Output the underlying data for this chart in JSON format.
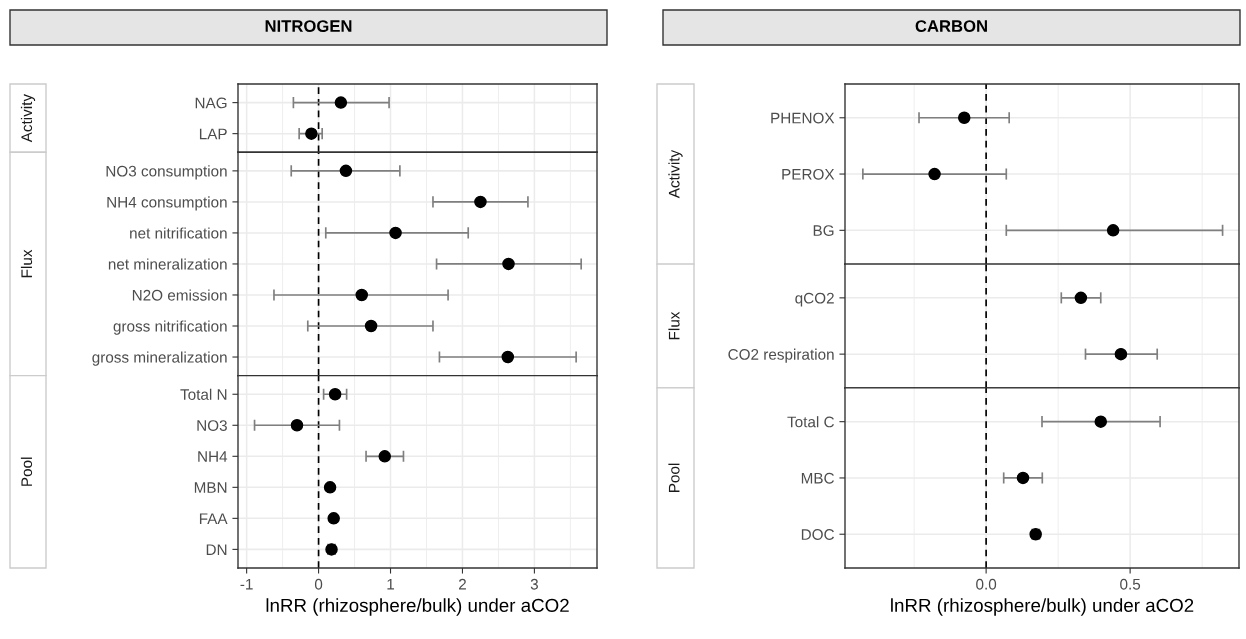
{
  "chart_data": [
    {
      "type": "scatter",
      "orientation": "horizontal",
      "title": "NITROGEN",
      "ylabel": "Activity",
      "categories": [
        "NAG",
        "LAP"
      ],
      "values": [
        0.31,
        -0.1
      ],
      "errors": [
        [
          -0.35,
          0.98
        ],
        [
          -0.27,
          0.05
        ]
      ],
      "color": "#000000",
      "marker": "circle",
      "xlim": [
        -1.12,
        3.87
      ],
      "xticks": [
        -1,
        0,
        1,
        2,
        3
      ],
      "tick_labels": "y",
      "grid": true,
      "ref_lines": [
        {
          "axis": "x",
          "value": 0,
          "line_style": "dashed",
          "color": "#000000"
        }
      ]
    },
    {
      "type": "scatter",
      "orientation": "horizontal",
      "ylabel": "Flux",
      "categories": [
        "NO3 consumption",
        "NH4 consumption",
        "net nitrification",
        "net mineralization",
        "N2O emission",
        "gross nitrification",
        "gross mineralization"
      ],
      "values": [
        0.38,
        2.25,
        1.07,
        2.64,
        0.6,
        0.73,
        2.63
      ],
      "errors": [
        [
          -0.38,
          1.13
        ],
        [
          1.59,
          2.91
        ],
        [
          0.1,
          2.08
        ],
        [
          1.64,
          3.65
        ],
        [
          -0.62,
          1.8
        ],
        [
          -0.15,
          1.59
        ],
        [
          1.68,
          3.58
        ]
      ],
      "color": "#000000",
      "marker": "circle",
      "xlim": [
        -1.12,
        3.87
      ],
      "xticks": [
        -1,
        0,
        1,
        2,
        3
      ],
      "tick_labels": "y",
      "grid": true,
      "ref_lines": [
        {
          "axis": "x",
          "value": 0,
          "line_style": "dashed",
          "color": "#000000"
        }
      ]
    },
    {
      "type": "scatter",
      "orientation": "horizontal",
      "ylabel": "Pool",
      "xlabel": "lnRR (rhizosphere/bulk) under aCO2",
      "categories": [
        "Total N",
        "NO3",
        "NH4",
        "MBN",
        "FAA",
        "DN"
      ],
      "values": [
        0.23,
        -0.3,
        0.92,
        0.16,
        0.21,
        0.18
      ],
      "errors": [
        [
          0.07,
          0.39
        ],
        [
          -0.89,
          0.29
        ],
        [
          0.66,
          1.18
        ],
        [
          0.13,
          0.19
        ],
        [
          0.18,
          0.24
        ],
        [
          0.13,
          0.23
        ]
      ],
      "color": "#000000",
      "marker": "circle",
      "xlim": [
        -1.12,
        3.87
      ],
      "xticks": [
        -1,
        0,
        1,
        2,
        3
      ],
      "grid": true,
      "ref_lines": [
        {
          "axis": "x",
          "value": 0,
          "line_style": "dashed",
          "color": "#000000"
        }
      ]
    },
    {
      "type": "scatter",
      "orientation": "horizontal",
      "title": "CARBON",
      "ylabel": "Activity",
      "categories": [
        "PHENOX",
        "PEROX",
        "BG"
      ],
      "values": [
        -0.076,
        -0.179,
        0.441
      ],
      "errors": [
        [
          -0.233,
          0.08
        ],
        [
          -0.428,
          0.07
        ],
        [
          0.07,
          0.821
        ]
      ],
      "color": "#000000",
      "marker": "circle",
      "xlim": [
        -0.49,
        0.878
      ],
      "tick_labels": "y",
      "grid": true,
      "ref_lines": [
        {
          "axis": "x",
          "value": 0,
          "line_style": "dashed",
          "color": "#000000"
        }
      ]
    },
    {
      "type": "scatter",
      "orientation": "horizontal",
      "ylabel": "Flux",
      "categories": [
        "qCO2",
        "CO2 respiration"
      ],
      "values": [
        0.329,
        0.468
      ],
      "errors": [
        [
          0.261,
          0.398
        ],
        [
          0.345,
          0.594
        ]
      ],
      "color": "#000000",
      "marker": "circle",
      "xlim": [
        -0.49,
        0.878
      ],
      "tick_labels": "y",
      "grid": true,
      "ref_lines": [
        {
          "axis": "x",
          "value": 0,
          "line_style": "dashed",
          "color": "#000000"
        }
      ]
    },
    {
      "type": "scatter",
      "orientation": "horizontal",
      "ylabel": "Pool",
      "xlabel": "lnRR (rhizosphere/bulk) under aCO2",
      "categories": [
        "Total C",
        "MBC",
        "DOC"
      ],
      "values": [
        0.398,
        0.128,
        0.172
      ],
      "errors": [
        [
          0.194,
          0.604
        ],
        [
          0.061,
          0.195
        ],
        [
          0.16,
          0.185
        ]
      ],
      "color": "#000000",
      "marker": "circle",
      "xlim": [
        -0.49,
        0.878
      ],
      "xticks": [
        {
          "value": 0,
          "label": "0.0"
        },
        0.5
      ],
      "grid": true,
      "ref_lines": [
        {
          "axis": "x",
          "value": 0,
          "line_style": "dashed",
          "color": "#000000"
        }
      ]
    }
  ]
}
